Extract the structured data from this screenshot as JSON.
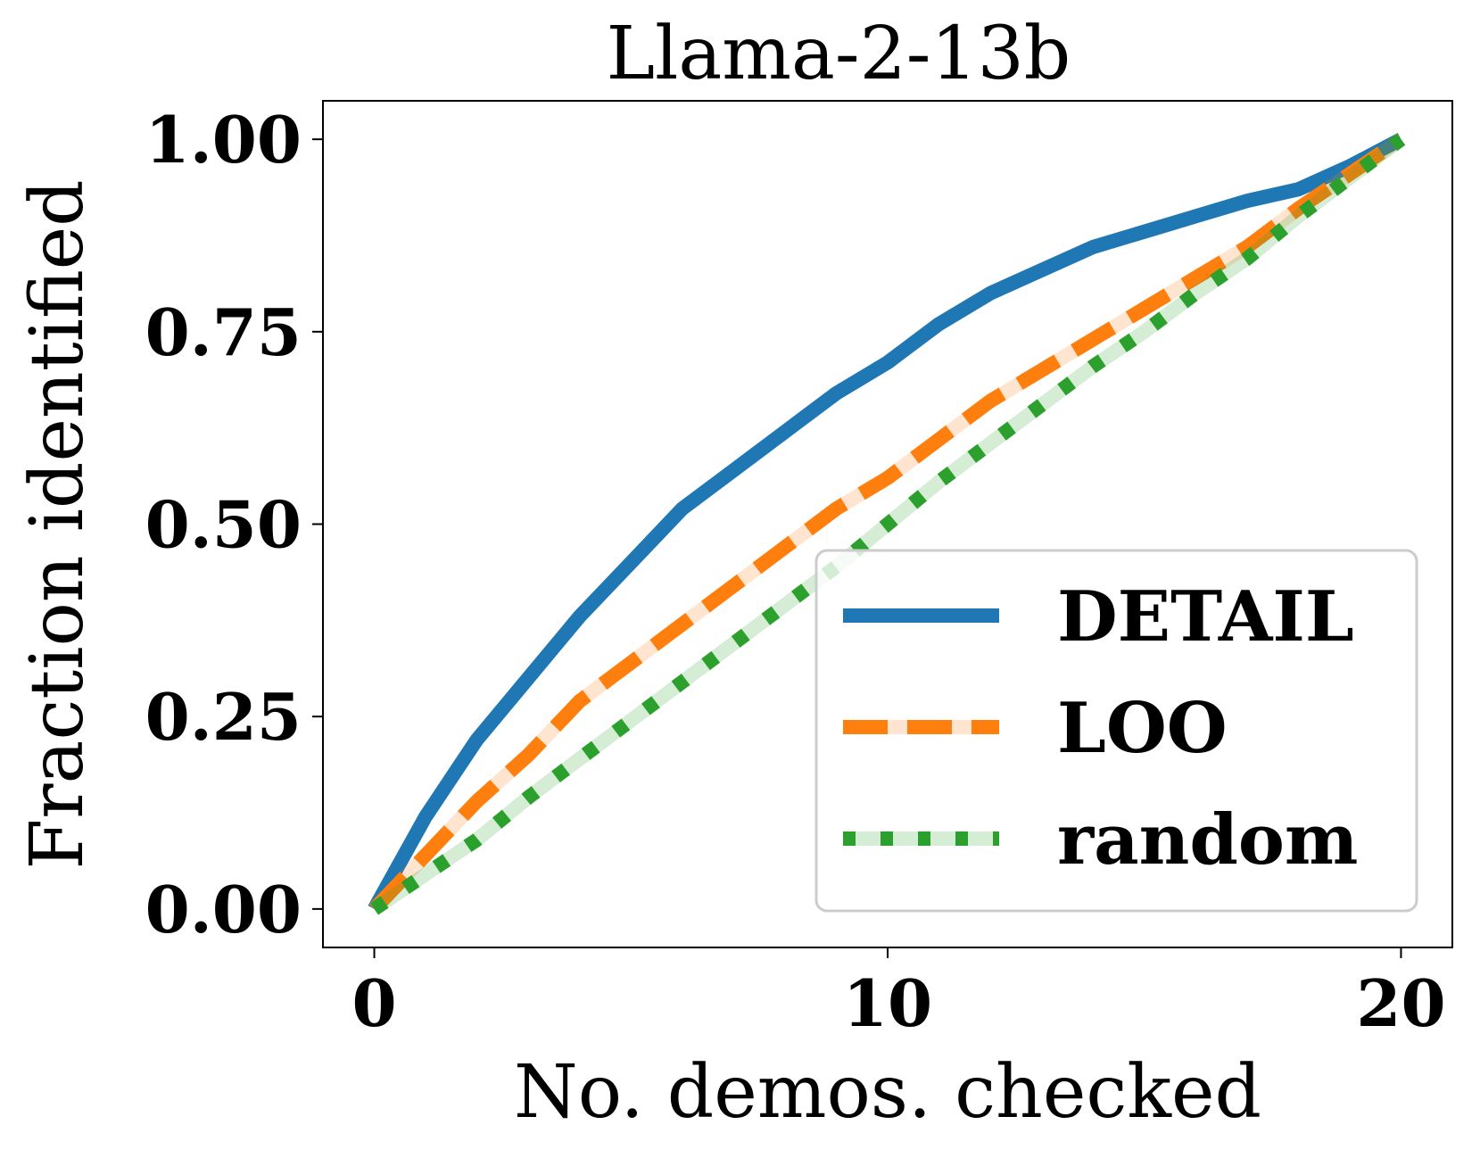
{
  "chart_data": {
    "type": "line",
    "title": "Llama-2-13b",
    "xlabel": "No. demos. checked",
    "ylabel": "Fraction identified",
    "xlim": [
      -1,
      21
    ],
    "ylim": [
      -0.05,
      1.05
    ],
    "xticks": [
      0,
      10,
      20
    ],
    "xtick_labels": [
      "0",
      "10",
      "20"
    ],
    "yticks": [
      0.0,
      0.25,
      0.5,
      0.75,
      1.0
    ],
    "ytick_labels": [
      "0.00",
      "0.25",
      "0.50",
      "0.75",
      "1.00"
    ],
    "grid": false,
    "legend_position": "lower-right",
    "x": [
      0,
      1,
      2,
      3,
      4,
      5,
      6,
      7,
      8,
      9,
      10,
      11,
      12,
      13,
      14,
      15,
      16,
      17,
      18,
      19,
      20
    ],
    "series": [
      {
        "name": "DETAIL",
        "color": "#1f77b4",
        "style": "solid",
        "values": [
          0.0,
          0.12,
          0.22,
          0.3,
          0.38,
          0.45,
          0.52,
          0.57,
          0.62,
          0.67,
          0.71,
          0.76,
          0.8,
          0.83,
          0.86,
          0.88,
          0.9,
          0.92,
          0.935,
          0.965,
          1.0
        ]
      },
      {
        "name": "LOO",
        "color": "#ff7f0e",
        "style": "dashed",
        "values": [
          0.0,
          0.07,
          0.14,
          0.2,
          0.27,
          0.32,
          0.37,
          0.42,
          0.47,
          0.52,
          0.56,
          0.61,
          0.66,
          0.7,
          0.74,
          0.78,
          0.82,
          0.86,
          0.91,
          0.955,
          1.0
        ]
      },
      {
        "name": "random",
        "color": "#2ca02c",
        "style": "dotted",
        "values": [
          0.0,
          0.045,
          0.09,
          0.145,
          0.195,
          0.245,
          0.295,
          0.345,
          0.395,
          0.445,
          0.5,
          0.555,
          0.605,
          0.655,
          0.705,
          0.75,
          0.8,
          0.845,
          0.9,
          0.95,
          1.0
        ]
      }
    ]
  }
}
